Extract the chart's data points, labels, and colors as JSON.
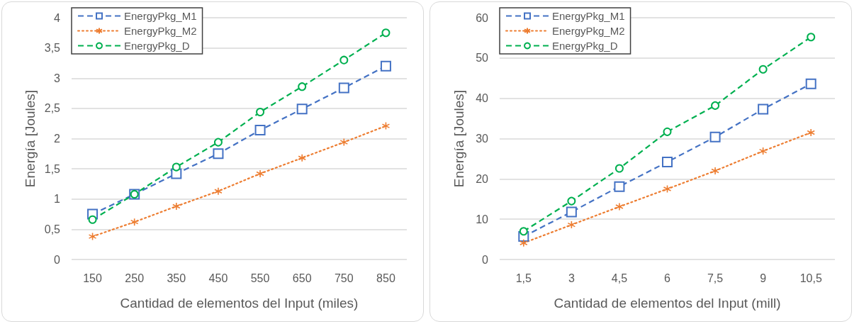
{
  "chart_data": [
    {
      "type": "line",
      "xlabel": "Cantidad de elementos del Input (miles)",
      "ylabel": "Energía [Joules]",
      "categories": [
        "150",
        "250",
        "350",
        "450",
        "550",
        "650",
        "750",
        "850"
      ],
      "ylim": [
        0,
        4
      ],
      "yticks": [
        0,
        {
          "value": 0.5,
          "label": "0,5"
        },
        1,
        {
          "value": 1.5,
          "label": "1,5"
        },
        2,
        {
          "value": 2.5,
          "label": "2,5"
        },
        3,
        {
          "value": 3.5,
          "label": "3,5"
        },
        4
      ],
      "grid": "y",
      "legend": "top left",
      "series": [
        {
          "name": "EnergyPkg_M1",
          "color": "#4472c4",
          "line_style": "dashed",
          "marker": "square",
          "values": [
            0.75,
            1.08,
            1.42,
            1.75,
            2.14,
            2.49,
            2.84,
            3.2
          ]
        },
        {
          "name": "EnergyPkg_M2",
          "color": "#ed7d31",
          "line_style": "dotted",
          "marker": "cross",
          "values": [
            0.38,
            0.62,
            0.88,
            1.13,
            1.42,
            1.68,
            1.94,
            2.21
          ]
        },
        {
          "name": "EnergyPkg_D",
          "color": "#00b050",
          "line_style": "dashed",
          "marker": "circle",
          "values": [
            0.66,
            1.08,
            1.53,
            1.94,
            2.44,
            2.86,
            3.3,
            3.75
          ]
        }
      ]
    },
    {
      "type": "line",
      "xlabel": "Cantidad de elementos del Input (mill)",
      "ylabel": "Energía [Joules]",
      "categories": [
        "1,5",
        "3",
        "4,5",
        "6",
        "7,5",
        "9",
        "10,5"
      ],
      "ylim": [
        0,
        60
      ],
      "yticks": [
        0,
        10,
        20,
        30,
        40,
        50,
        60
      ],
      "grid": "y",
      "legend": "top left",
      "series": [
        {
          "name": "EnergyPkg_M1",
          "color": "#4472c4",
          "line_style": "dashed",
          "marker": "square",
          "values": [
            5.7,
            11.8,
            18.1,
            24.2,
            30.4,
            37.3,
            43.6
          ]
        },
        {
          "name": "EnergyPkg_M2",
          "color": "#ed7d31",
          "line_style": "dotted",
          "marker": "cross",
          "values": [
            4.1,
            8.6,
            13.1,
            17.5,
            22,
            26.9,
            31.5
          ]
        },
        {
          "name": "EnergyPkg_D",
          "color": "#00b050",
          "line_style": "dashed",
          "marker": "circle",
          "values": [
            7,
            14.5,
            22.6,
            31.7,
            38.2,
            47.2,
            55.2
          ]
        }
      ]
    }
  ]
}
